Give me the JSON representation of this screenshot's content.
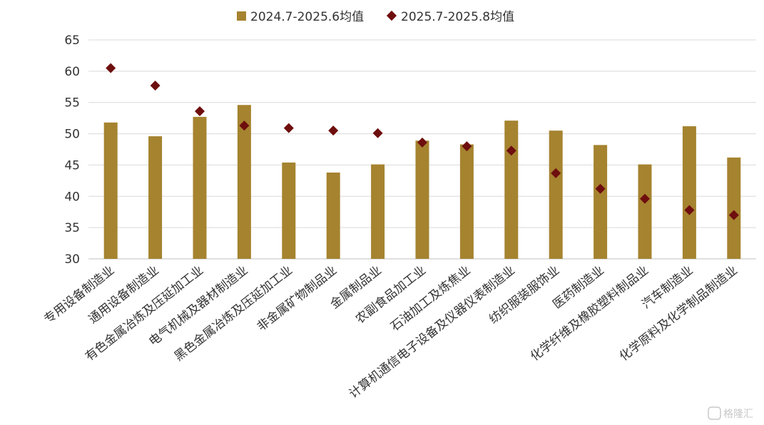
{
  "chart_data": {
    "type": "bar",
    "title": "",
    "xlabel": "",
    "ylabel": "",
    "ylim": [
      30,
      65
    ],
    "yticks": [
      30,
      35,
      40,
      45,
      50,
      55,
      60,
      65
    ],
    "grid": true,
    "legend_position": "top",
    "categories": [
      "专用设备制造业",
      "通用设备制造业",
      "有色金属冶炼及压延加工业",
      "电气机械及器材制造业",
      "黑色金属冶炼及压延加工业",
      "非金属矿物制品业",
      "金属制品业",
      "农副食品加工业",
      "石油加工及炼焦业",
      "计算机通信电子设备及仪器仪表制造业",
      "纺织服装服饰业",
      "医药制造业",
      "化学纤维及橡胶塑料制品业",
      "汽车制造业",
      "化学原料及化学制品制造业"
    ],
    "series": [
      {
        "name": "2024.7-2025.6均值",
        "type": "bar",
        "color": "#A5832F",
        "values": [
          51.8,
          49.6,
          52.7,
          54.6,
          45.4,
          43.8,
          45.1,
          48.9,
          48.3,
          52.1,
          50.5,
          48.2,
          45.1,
          51.2,
          46.2
        ]
      },
      {
        "name": "2025.7-2025.8均值",
        "type": "marker",
        "color": "#6E0E0E",
        "values": [
          60.5,
          57.7,
          53.6,
          51.3,
          50.9,
          50.5,
          50.1,
          48.6,
          48.0,
          47.3,
          43.7,
          41.2,
          39.6,
          37.8,
          37.0
        ]
      }
    ]
  },
  "watermark": "格隆汇"
}
